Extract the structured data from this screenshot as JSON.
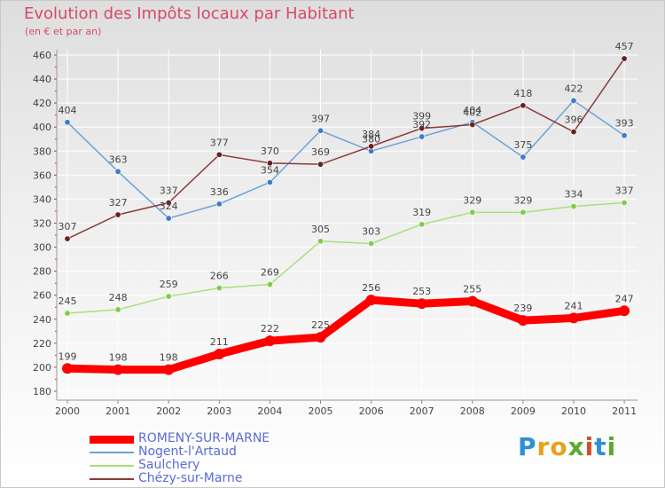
{
  "header": {
    "title": "Evolution des Impôts locaux par Habitant",
    "subtitle": "(en € et par an)"
  },
  "logo": {
    "letters": [
      "P",
      "r",
      "o",
      "x",
      "i",
      "t",
      "i"
    ],
    "colors": [
      "#2e8fd6",
      "#e8a21a",
      "#e8a21a",
      "#5aaa2e",
      "#d94a2a",
      "#2e8fd6",
      "#5aaa2e"
    ]
  },
  "chart_data": {
    "type": "line",
    "categories": [
      "2000",
      "2001",
      "2002",
      "2003",
      "2004",
      "2005",
      "2006",
      "2007",
      "2008",
      "2009",
      "2010",
      "2011"
    ],
    "ylim": [
      180,
      460
    ],
    "yticks": [
      "180",
      "200",
      "220",
      "240",
      "260",
      "280",
      "300",
      "320",
      "340",
      "360",
      "380",
      "400",
      "420",
      "440",
      "460"
    ],
    "grid": true,
    "legend_position": "bottom-left",
    "series": [
      {
        "name": "ROMENY-SUR-MARNE",
        "values": [
          199,
          198,
          198,
          211,
          222,
          225,
          256,
          253,
          255,
          239,
          241,
          247
        ],
        "color": "#ff0000",
        "marker_color": "#ff0000"
      },
      {
        "name": "Nogent-l'Artaud",
        "values": [
          404,
          363,
          324,
          336,
          354,
          397,
          380,
          392,
          404,
          375,
          422,
          393
        ],
        "color": "#6fa1d6",
        "marker_color": "#3d7cc9"
      },
      {
        "name": "Saulchery",
        "values": [
          245,
          248,
          259,
          266,
          269,
          305,
          303,
          319,
          329,
          329,
          334,
          337
        ],
        "color": "#a8e07a",
        "marker_color": "#7fcc4a"
      },
      {
        "name": "Chézy-sur-Marne",
        "values": [
          307,
          327,
          337,
          377,
          370,
          369,
          384,
          399,
          402,
          418,
          396,
          457
        ],
        "color": "#8a3a3a",
        "marker_color": "#6b1f1f"
      }
    ]
  }
}
